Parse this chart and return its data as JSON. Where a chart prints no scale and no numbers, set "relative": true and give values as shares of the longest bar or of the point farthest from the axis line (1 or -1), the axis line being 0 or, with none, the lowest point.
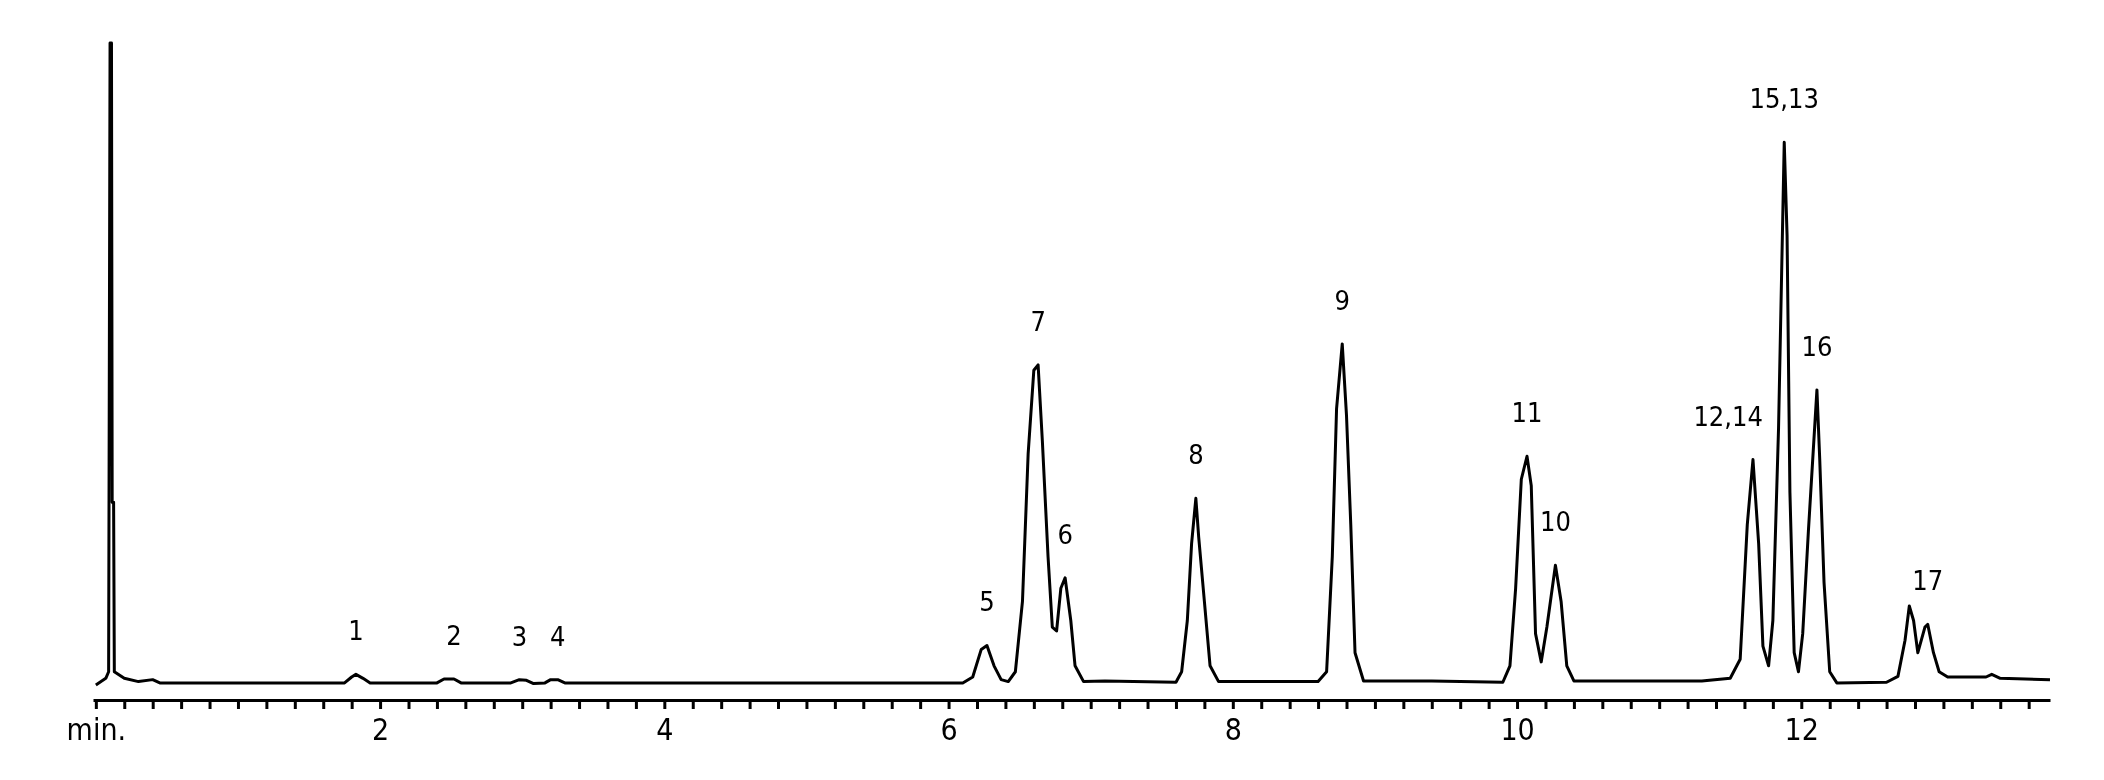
{
  "chart_data": {
    "type": "line",
    "relative": true,
    "grid": false,
    "marker": "none",
    "line_style": "solid",
    "xlim": [
      -0.02,
      13.75
    ],
    "xticks": [
      {
        "value": 0,
        "label": "min."
      },
      {
        "value": 0.2,
        "label": null
      },
      {
        "value": 0.4,
        "label": null
      },
      {
        "value": 0.6,
        "label": null
      },
      {
        "value": 0.8,
        "label": null
      },
      {
        "value": 1,
        "label": null
      },
      {
        "value": 1.2,
        "label": null
      },
      {
        "value": 1.4,
        "label": null
      },
      {
        "value": 1.6,
        "label": null
      },
      {
        "value": 1.8,
        "label": null
      },
      2,
      {
        "value": 2.2,
        "label": null
      },
      {
        "value": 2.4,
        "label": null
      },
      {
        "value": 2.6,
        "label": null
      },
      {
        "value": 2.8,
        "label": null
      },
      {
        "value": 3,
        "label": null
      },
      {
        "value": 3.2,
        "label": null
      },
      {
        "value": 3.4,
        "label": null
      },
      {
        "value": 3.6,
        "label": null
      },
      {
        "value": 3.8,
        "label": null
      },
      4,
      {
        "value": 4.2,
        "label": null
      },
      {
        "value": 4.4,
        "label": null
      },
      {
        "value": 4.6,
        "label": null
      },
      {
        "value": 4.8,
        "label": null
      },
      {
        "value": 5,
        "label": null
      },
      {
        "value": 5.2,
        "label": null
      },
      {
        "value": 5.4,
        "label": null
      },
      {
        "value": 5.6,
        "label": null
      },
      {
        "value": 5.8,
        "label": null
      },
      6,
      {
        "value": 6.2,
        "label": null
      },
      {
        "value": 6.4,
        "label": null
      },
      {
        "value": 6.6,
        "label": null
      },
      {
        "value": 6.8,
        "label": null
      },
      {
        "value": 7,
        "label": null
      },
      {
        "value": 7.2,
        "label": null
      },
      {
        "value": 7.4,
        "label": null
      },
      {
        "value": 7.6,
        "label": null
      },
      {
        "value": 7.8,
        "label": null
      },
      8,
      {
        "value": 8.2,
        "label": null
      },
      {
        "value": 8.4,
        "label": null
      },
      {
        "value": 8.6,
        "label": null
      },
      {
        "value": 8.8,
        "label": null
      },
      {
        "value": 9,
        "label": null
      },
      {
        "value": 9.2,
        "label": null
      },
      {
        "value": 9.4,
        "label": null
      },
      {
        "value": 9.6,
        "label": null
      },
      {
        "value": 9.8,
        "label": null
      },
      10,
      {
        "value": 10.2,
        "label": null
      },
      {
        "value": 10.4,
        "label": null
      },
      {
        "value": 10.6,
        "label": null
      },
      {
        "value": 10.8,
        "label": null
      },
      {
        "value": 11,
        "label": null
      },
      {
        "value": 11.2,
        "label": null
      },
      {
        "value": 11.4,
        "label": null
      },
      {
        "value": 11.6,
        "label": null
      },
      {
        "value": 11.8,
        "label": null
      },
      12,
      {
        "value": 12.2,
        "label": null
      },
      {
        "value": 12.4,
        "label": null
      },
      {
        "value": 12.6,
        "label": null
      },
      {
        "value": 12.8,
        "label": null
      },
      {
        "value": 13,
        "label": null
      },
      {
        "value": 13.2,
        "label": null
      },
      {
        "value": 13.4,
        "label": null
      },
      {
        "value": 13.6,
        "label": null
      }
    ],
    "series": [
      {
        "color": "#000000",
        "x": [
          0,
          0.07,
          0.09,
          0.1,
          0.11,
          0.115,
          0.125,
          0.13,
          0.2,
          0.3,
          0.4,
          0.45,
          0.7,
          1.75,
          1.8,
          1.83,
          1.88,
          1.93,
          2.4,
          2.45,
          2.52,
          2.57,
          2.92,
          2.98,
          3.03,
          3.08,
          3.16,
          3.2,
          3.25,
          3.3,
          6.1,
          6.17,
          6.23,
          6.27,
          6.32,
          6.37,
          6.42,
          6.47,
          6.52,
          6.56,
          6.6,
          6.63,
          6.66,
          6.7,
          6.73,
          6.76,
          6.79,
          6.82,
          6.86,
          6.89,
          6.95,
          7.1,
          7.6,
          7.64,
          7.68,
          7.71,
          7.74,
          7.76,
          7.8,
          7.84,
          7.9,
          8.6,
          8.66,
          8.7,
          8.73,
          8.77,
          8.8,
          8.83,
          8.86,
          8.92,
          9.4,
          9.9,
          9.95,
          9.99,
          10.03,
          10.07,
          10.1,
          10.13,
          10.17,
          10.21,
          10.27,
          10.31,
          10.35,
          10.4,
          11.3,
          11.5,
          11.57,
          11.62,
          11.66,
          11.7,
          11.73,
          11.77,
          11.8,
          11.84,
          11.88,
          11.9,
          11.92,
          11.95,
          11.98,
          12.01,
          12.05,
          12.11,
          12.13,
          12.16,
          12.2,
          12.25,
          12.6,
          12.68,
          12.73,
          12.76,
          12.79,
          12.82,
          12.87,
          12.89,
          12.93,
          12.97,
          13.03,
          13.3,
          13.34,
          13.4,
          13.75
        ],
        "values": [
          0.023,
          0.033,
          0.043,
          1.0,
          1.0,
          0.301,
          0.301,
          0.043,
          0.033,
          0.028,
          0.031,
          0.026,
          0.026,
          0.026,
          0.035,
          0.039,
          0.033,
          0.026,
          0.026,
          0.032,
          0.032,
          0.026,
          0.026,
          0.031,
          0.03,
          0.025,
          0.026,
          0.031,
          0.031,
          0.026,
          0.026,
          0.035,
          0.077,
          0.083,
          0.052,
          0.031,
          0.028,
          0.043,
          0.15,
          0.375,
          0.502,
          0.51,
          0.394,
          0.218,
          0.111,
          0.105,
          0.17,
          0.186,
          0.121,
          0.052,
          0.028,
          0.029,
          0.027,
          0.043,
          0.121,
          0.238,
          0.307,
          0.248,
          0.15,
          0.052,
          0.028,
          0.028,
          0.043,
          0.218,
          0.443,
          0.542,
          0.433,
          0.267,
          0.072,
          0.029,
          0.029,
          0.027,
          0.052,
          0.17,
          0.336,
          0.371,
          0.326,
          0.101,
          0.058,
          0.111,
          0.205,
          0.15,
          0.052,
          0.029,
          0.029,
          0.033,
          0.062,
          0.267,
          0.366,
          0.238,
          0.082,
          0.052,
          0.121,
          0.414,
          0.849,
          0.707,
          0.316,
          0.072,
          0.043,
          0.101,
          0.257,
          0.472,
          0.365,
          0.179,
          0.043,
          0.026,
          0.027,
          0.036,
          0.091,
          0.143,
          0.121,
          0.072,
          0.111,
          0.115,
          0.072,
          0.043,
          0.035,
          0.035,
          0.039,
          0.033,
          0.031
        ]
      }
    ],
    "annotations": [
      {
        "text": "1",
        "x": 1.83,
        "y": 0.039
      },
      {
        "text": "2",
        "x": 2.52,
        "y": 0.032
      },
      {
        "text": "3",
        "x": 2.98,
        "y": 0.031
      },
      {
        "text": "4",
        "x": 3.25,
        "y": 0.031
      },
      {
        "text": "5",
        "x": 6.27,
        "y": 0.083
      },
      {
        "text": "7",
        "x": 6.63,
        "y": 0.51
      },
      {
        "text": "6",
        "x": 6.82,
        "y": 0.186
      },
      {
        "text": "8",
        "x": 7.74,
        "y": 0.307
      },
      {
        "text": "9",
        "x": 8.77,
        "y": 0.542
      },
      {
        "text": "11",
        "x": 10.07,
        "y": 0.371
      },
      {
        "text": "10",
        "x": 10.27,
        "y": 0.205
      },
      {
        "text": "12,14",
        "x": 11.66,
        "y": 0.366
      },
      {
        "text": "15,13",
        "x": 11.88,
        "y": 0.849
      },
      {
        "text": "16",
        "x": 12.11,
        "y": 0.472
      },
      {
        "text": "17",
        "x": 12.89,
        "y": 0.115
      }
    ]
  }
}
